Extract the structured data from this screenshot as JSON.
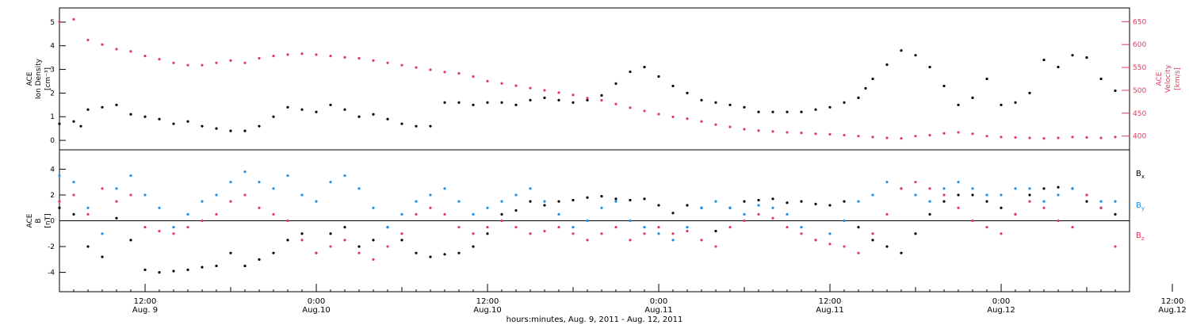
{
  "time_axis": {
    "ticks": [
      {
        "time": "12:00",
        "date": "Aug. 9"
      },
      {
        "time": "0:00",
        "date": "Aug.10"
      },
      {
        "time": "12:00",
        "date": "Aug.10"
      },
      {
        "time": "0:00",
        "date": "Aug.11"
      },
      {
        "time": "12:00",
        "date": "Aug.11"
      },
      {
        "time": "0:00",
        "date": "Aug.12"
      },
      {
        "time": "12:00",
        "date": "Aug.12"
      }
    ],
    "caption": "hours:minutes, Aug.  9, 2011 - Aug. 12, 2011"
  },
  "chart_data": [
    {
      "type": "scatter",
      "panel": "top",
      "x_unit": "hours since 2011-08-09 06:00",
      "xlim": [
        0,
        75
      ],
      "left_axis": {
        "label_lines": [
          "ACE",
          "Ion Density"
        ],
        "unit": "[cm⁻³]",
        "ylim": [
          -0.4,
          5.6
        ],
        "ticks": [
          0,
          1,
          2,
          3,
          4,
          5
        ]
      },
      "right_axis": {
        "label_lines": [
          "ACE",
          "Velocity"
        ],
        "unit": "[km/s]",
        "ylim": [
          370,
          680
        ],
        "ticks": [
          400,
          450,
          500,
          550,
          600,
          650
        ]
      },
      "series": [
        {
          "name": "Ion Density",
          "axis": "left",
          "color": "#000000",
          "x": [
            0,
            1,
            1.5,
            2,
            3,
            4,
            5,
            6,
            7,
            8,
            9,
            10,
            11,
            12,
            13,
            14,
            15,
            16,
            17,
            18,
            19,
            20,
            21,
            22,
            23,
            24,
            25,
            26,
            27,
            28,
            29,
            30,
            31,
            32,
            33,
            34,
            35,
            36,
            37,
            38,
            39,
            40,
            41,
            42,
            43,
            44,
            45,
            46,
            47,
            48,
            49,
            50,
            51,
            52,
            53,
            54,
            55,
            56,
            56.5,
            57,
            58,
            59,
            60,
            61,
            62,
            63,
            64,
            65,
            66,
            67,
            68,
            69,
            70,
            71,
            72,
            73,
            74
          ],
          "y": [
            0.7,
            0.8,
            0.6,
            1.3,
            1.4,
            1.5,
            1.1,
            1.0,
            0.9,
            0.7,
            0.8,
            0.6,
            0.5,
            0.4,
            0.4,
            0.6,
            1.0,
            1.4,
            1.3,
            1.2,
            1.5,
            1.3,
            1.0,
            1.1,
            0.9,
            0.7,
            0.6,
            0.6,
            1.6,
            1.6,
            1.5,
            1.6,
            1.6,
            1.5,
            1.7,
            1.8,
            1.7,
            1.6,
            1.7,
            1.9,
            2.4,
            2.9,
            3.1,
            2.7,
            2.3,
            2.0,
            1.7,
            1.6,
            1.5,
            1.4,
            1.2,
            1.2,
            1.2,
            1.2,
            1.3,
            1.4,
            1.6,
            1.8,
            2.2,
            2.6,
            3.2,
            3.8,
            3.6,
            3.1,
            2.3,
            1.5,
            1.8,
            2.6,
            1.5,
            1.6,
            2.0,
            3.4,
            3.1,
            3.6,
            3.5,
            2.6,
            2.1
          ]
        },
        {
          "name": "Velocity",
          "axis": "right",
          "color": "#e03a5c",
          "x": [
            0,
            1,
            2,
            3,
            4,
            5,
            6,
            7,
            8,
            9,
            10,
            11,
            12,
            13,
            14,
            15,
            16,
            17,
            18,
            19,
            20,
            21,
            22,
            23,
            24,
            25,
            26,
            27,
            28,
            29,
            30,
            31,
            32,
            33,
            34,
            35,
            36,
            37,
            38,
            39,
            40,
            41,
            42,
            43,
            44,
            45,
            46,
            47,
            48,
            49,
            50,
            51,
            52,
            53,
            54,
            55,
            56,
            57,
            58,
            59,
            60,
            61,
            62,
            63,
            64,
            65,
            66,
            67,
            68,
            69,
            70,
            71,
            72,
            73,
            74
          ],
          "y": [
            650,
            655,
            610,
            600,
            590,
            585,
            575,
            568,
            560,
            555,
            555,
            560,
            565,
            560,
            570,
            575,
            578,
            580,
            578,
            575,
            572,
            570,
            565,
            560,
            555,
            550,
            545,
            540,
            537,
            530,
            520,
            515,
            510,
            505,
            500,
            495,
            490,
            483,
            478,
            470,
            462,
            455,
            448,
            442,
            438,
            432,
            425,
            420,
            415,
            412,
            410,
            408,
            407,
            405,
            404,
            402,
            400,
            398,
            396,
            395,
            400,
            402,
            406,
            408,
            405,
            400,
            398,
            397,
            396,
            395,
            396,
            398,
            397,
            396,
            398
          ]
        }
      ]
    },
    {
      "type": "scatter",
      "panel": "bottom",
      "x_unit": "hours since 2011-08-09 06:00",
      "xlim": [
        0,
        75
      ],
      "axis": {
        "label_lines": [
          "ACE",
          "B"
        ],
        "unit": "[nT]",
        "ylim": [
          -5.5,
          5.5
        ],
        "ticks": [
          -4,
          -2,
          0,
          2,
          4
        ]
      },
      "legend": [
        {
          "symbol": "B",
          "sub": "x",
          "color": "#000000"
        },
        {
          "symbol": "B",
          "sub": "y",
          "color": "#1f8fe6"
        },
        {
          "symbol": "B",
          "sub": "z",
          "color": "#e03a5c"
        }
      ],
      "series": [
        {
          "name": "Bx",
          "color": "#000000",
          "x": [
            0,
            1,
            2,
            3,
            4,
            5,
            6,
            7,
            8,
            9,
            10,
            11,
            12,
            13,
            14,
            15,
            16,
            17,
            18,
            19,
            20,
            21,
            22,
            23,
            24,
            25,
            26,
            27,
            28,
            29,
            30,
            31,
            32,
            33,
            34,
            35,
            36,
            37,
            38,
            39,
            40,
            41,
            42,
            43,
            44,
            45,
            46,
            47,
            48,
            49,
            50,
            51,
            52,
            53,
            54,
            55,
            56,
            57,
            58,
            59,
            60,
            61,
            62,
            63,
            64,
            65,
            66,
            67,
            68,
            69,
            70,
            71,
            72,
            73,
            74
          ],
          "y": [
            1.0,
            0.5,
            -2.0,
            -2.8,
            0.2,
            -1.5,
            -3.8,
            -4.0,
            -3.9,
            -3.8,
            -3.6,
            -3.5,
            -2.5,
            -3.5,
            -3.0,
            -2.5,
            -1.5,
            -1.0,
            -2.5,
            -1.0,
            -0.5,
            -2.0,
            -1.5,
            -0.5,
            -1.5,
            -2.5,
            -2.8,
            -2.6,
            -2.5,
            -2.0,
            -1.0,
            0.5,
            0.8,
            1.5,
            1.2,
            1.5,
            1.6,
            1.8,
            1.9,
            1.7,
            1.6,
            1.7,
            1.2,
            0.6,
            1.2,
            1.0,
            -0.8,
            1.0,
            1.5,
            1.6,
            1.7,
            1.4,
            1.5,
            1.3,
            1.2,
            1.5,
            -0.5,
            -1.5,
            -2.0,
            -2.5,
            -1.0,
            0.5,
            1.5,
            2.0,
            2.0,
            1.5,
            1.0,
            0.5,
            2.0,
            2.5,
            2.6,
            2.5,
            1.5,
            1.0,
            0.5
          ]
        },
        {
          "name": "By",
          "color": "#1f8fe6",
          "x": [
            0,
            1,
            2,
            3,
            4,
            5,
            6,
            7,
            8,
            9,
            10,
            11,
            12,
            13,
            14,
            15,
            16,
            17,
            18,
            19,
            20,
            21,
            22,
            23,
            24,
            25,
            26,
            27,
            28,
            29,
            30,
            31,
            32,
            33,
            34,
            35,
            36,
            37,
            38,
            39,
            40,
            41,
            42,
            43,
            44,
            45,
            46,
            47,
            48,
            49,
            50,
            51,
            52,
            53,
            54,
            55,
            56,
            57,
            58,
            59,
            60,
            61,
            62,
            63,
            64,
            65,
            66,
            67,
            68,
            69,
            70,
            71,
            72,
            73,
            74
          ],
          "y": [
            3.5,
            3.0,
            1.0,
            -1.0,
            2.5,
            3.5,
            2.0,
            1.0,
            -0.5,
            0.5,
            1.5,
            2.0,
            3.0,
            3.8,
            3.0,
            2.5,
            3.5,
            2.0,
            1.5,
            3.0,
            3.5,
            2.5,
            1.0,
            -0.5,
            0.5,
            1.5,
            2.0,
            2.5,
            1.5,
            0.5,
            1.0,
            1.5,
            2.0,
            2.5,
            1.5,
            0.5,
            -0.5,
            0.0,
            1.0,
            1.5,
            0.0,
            -0.5,
            -1.0,
            -1.5,
            -0.5,
            1.0,
            1.5,
            1.0,
            0.5,
            1.2,
            1.0,
            0.5,
            -0.5,
            -1.5,
            -1.0,
            0.0,
            1.5,
            2.0,
            3.0,
            2.5,
            2.0,
            1.5,
            2.5,
            3.0,
            2.5,
            2.0,
            2.0,
            2.5,
            2.5,
            1.5,
            2.0,
            2.5,
            2.0,
            1.5,
            1.5
          ]
        },
        {
          "name": "Bz",
          "color": "#e03a5c",
          "x": [
            0,
            1,
            2,
            3,
            4,
            5,
            6,
            7,
            8,
            9,
            10,
            11,
            12,
            13,
            14,
            15,
            16,
            17,
            18,
            19,
            20,
            21,
            22,
            23,
            24,
            25,
            26,
            27,
            28,
            29,
            30,
            31,
            32,
            33,
            34,
            35,
            36,
            37,
            38,
            39,
            40,
            41,
            42,
            43,
            44,
            45,
            46,
            47,
            48,
            49,
            50,
            51,
            52,
            53,
            54,
            55,
            56,
            57,
            58,
            59,
            60,
            61,
            62,
            63,
            64,
            65,
            66,
            67,
            68,
            69,
            70,
            71,
            72,
            73,
            74
          ],
          "y": [
            1.5,
            2.0,
            0.5,
            2.5,
            1.5,
            2.0,
            -0.5,
            -0.8,
            -1.0,
            -0.5,
            0.0,
            0.5,
            1.5,
            2.0,
            1.0,
            0.5,
            0.0,
            -1.5,
            -2.5,
            -2.0,
            -1.5,
            -2.5,
            -3.0,
            -2.0,
            -1.0,
            0.5,
            1.0,
            0.5,
            -0.5,
            -1.0,
            -0.5,
            0.0,
            -0.5,
            -1.0,
            -0.8,
            -0.5,
            -1.0,
            -1.5,
            -1.0,
            -0.5,
            -1.5,
            -1.0,
            -0.5,
            -1.0,
            -0.8,
            -1.5,
            -2.0,
            -0.5,
            0.0,
            0.5,
            0.2,
            -0.5,
            -1.0,
            -1.5,
            -1.8,
            -2.0,
            -2.5,
            -1.0,
            0.5,
            2.5,
            3.0,
            2.5,
            2.0,
            1.0,
            0.0,
            -0.5,
            -1.0,
            0.5,
            1.5,
            1.0,
            0.0,
            -0.5,
            2.0,
            1.0,
            -2.0
          ]
        }
      ]
    }
  ]
}
